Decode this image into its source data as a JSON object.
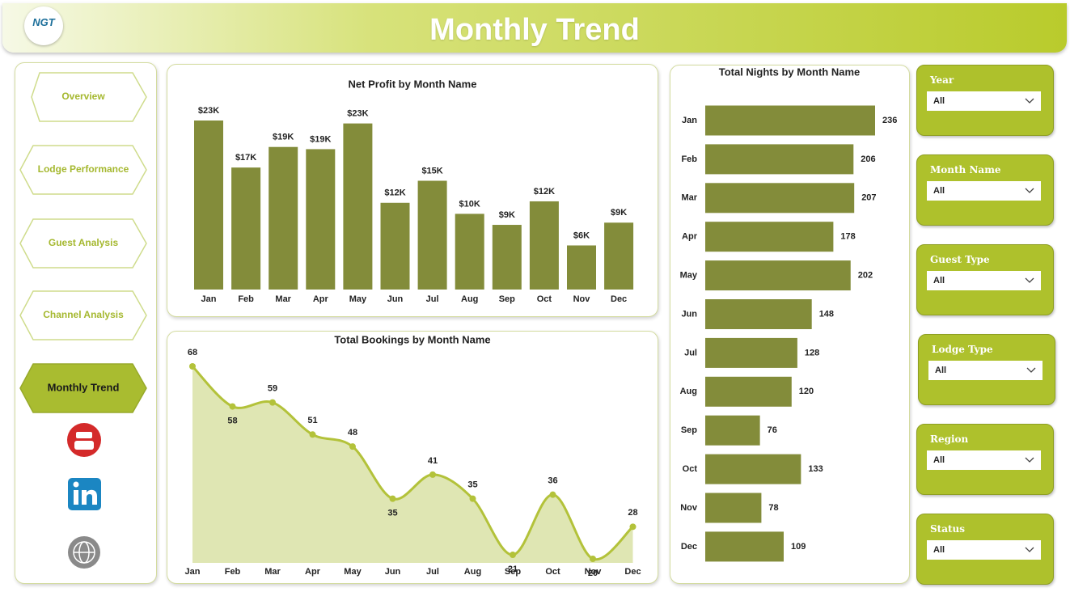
{
  "header": {
    "title": "Monthly Trend",
    "logo": "NGT"
  },
  "nav": [
    "Overview",
    "Lodge Performance",
    "Guest Analysis",
    "Channel Analysis",
    "Monthly Trend"
  ],
  "filters": [
    {
      "label": "Year",
      "value": "All"
    },
    {
      "label": "Month Name",
      "value": "All"
    },
    {
      "label": "Guest Type",
      "value": "All"
    },
    {
      "label": "Lodge Type",
      "value": "All"
    },
    {
      "label": "Region",
      "value": "All"
    },
    {
      "label": "Status",
      "value": "All"
    }
  ],
  "chart_data": [
    {
      "type": "bar",
      "title": "Net Profit by Month Name",
      "color": "#838c3a",
      "categories": [
        "Jan",
        "Feb",
        "Mar",
        "Apr",
        "May",
        "Jun",
        "Jul",
        "Aug",
        "Sep",
        "Oct",
        "Nov",
        "Dec"
      ],
      "values": [
        23000,
        16600,
        19400,
        19100,
        22600,
        11800,
        14800,
        10300,
        8800,
        12000,
        6000,
        9100
      ],
      "value_labels": [
        "$23K",
        "$17K",
        "$19K",
        "$19K",
        "$23K",
        "$12K",
        "$15K",
        "$10K",
        "$9K",
        "$12K",
        "$6K",
        "$9K"
      ]
    },
    {
      "type": "area",
      "title": "Total Bookings by Month Name",
      "color": "#b3c23a",
      "fill": "#dfe6b3",
      "categories": [
        "Jan",
        "Feb",
        "Mar",
        "Apr",
        "May",
        "Jun",
        "Jul",
        "Aug",
        "Sep",
        "Oct",
        "Nov",
        "Dec"
      ],
      "values": [
        68,
        58,
        59,
        51,
        48,
        35,
        41,
        35,
        21,
        36,
        20,
        28
      ]
    },
    {
      "type": "barh",
      "title": "Total Nights by Month Name",
      "color": "#838c3a",
      "categories": [
        "Jan",
        "Feb",
        "Mar",
        "Apr",
        "May",
        "Jun",
        "Jul",
        "Aug",
        "Sep",
        "Oct",
        "Nov",
        "Dec"
      ],
      "values": [
        236,
        206,
        207,
        178,
        202,
        148,
        128,
        120,
        76,
        133,
        78,
        109
      ]
    }
  ]
}
